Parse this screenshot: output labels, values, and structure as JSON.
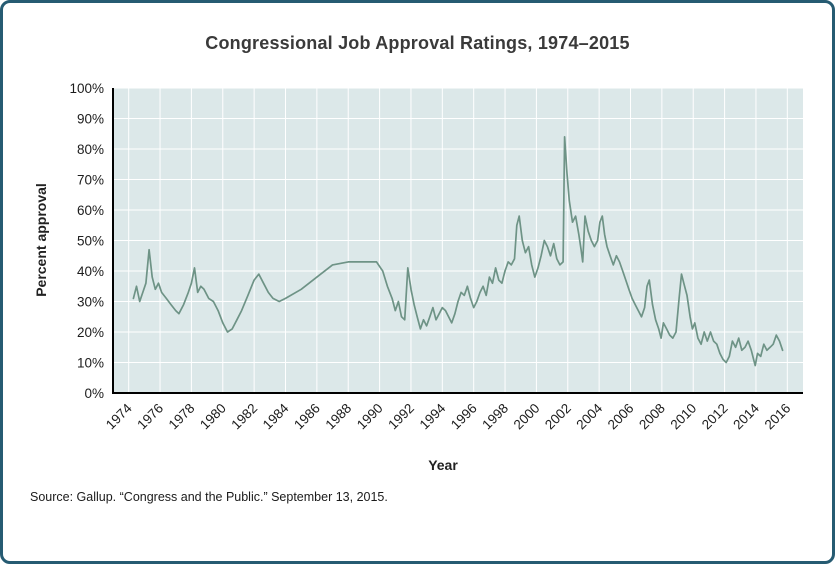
{
  "figure": {
    "title": "Congressional Job Approval Ratings, 1974–2015",
    "source": "Source: Gallup. “Congress and the Public.” September 13, 2015."
  },
  "chart_data": {
    "type": "line",
    "title": "Congressional Job Approval Ratings, 1974–2015",
    "xlabel": "Year",
    "ylabel": "Percent approval",
    "x_domain": [
      1973,
      2017
    ],
    "ylim": [
      0,
      100
    ],
    "xticks": [
      1974,
      1976,
      1978,
      1980,
      1982,
      1984,
      1986,
      1988,
      1990,
      1992,
      1994,
      1996,
      1998,
      2000,
      2002,
      2004,
      2006,
      2008,
      2010,
      2012,
      2014,
      2016
    ],
    "yticks": [
      0,
      10,
      20,
      30,
      40,
      50,
      60,
      70,
      80,
      90,
      100
    ],
    "ytick_suffix": "%",
    "grid": true,
    "grid_color": "#ffffff",
    "plot_bg": "#dce8e9",
    "line_color": "#6e9386",
    "axis_color": "#000000",
    "legend_position": "none",
    "series": [
      {
        "name": "Congressional job approval",
        "points": [
          [
            1974.3,
            31
          ],
          [
            1974.5,
            35
          ],
          [
            1974.7,
            30
          ],
          [
            1974.9,
            33
          ],
          [
            1975.1,
            36
          ],
          [
            1975.3,
            47
          ],
          [
            1975.5,
            38
          ],
          [
            1975.7,
            34
          ],
          [
            1975.9,
            36
          ],
          [
            1976.1,
            33
          ],
          [
            1976.4,
            31
          ],
          [
            1976.7,
            29
          ],
          [
            1977.0,
            27
          ],
          [
            1977.2,
            26
          ],
          [
            1977.5,
            29
          ],
          [
            1977.8,
            33
          ],
          [
            1978.0,
            36
          ],
          [
            1978.2,
            41
          ],
          [
            1978.4,
            33
          ],
          [
            1978.6,
            35
          ],
          [
            1978.8,
            34
          ],
          [
            1979.1,
            31
          ],
          [
            1979.4,
            30
          ],
          [
            1979.7,
            27
          ],
          [
            1980.0,
            23
          ],
          [
            1980.3,
            20
          ],
          [
            1980.6,
            21
          ],
          [
            1980.9,
            24
          ],
          [
            1981.2,
            27
          ],
          [
            1981.6,
            32
          ],
          [
            1982.0,
            37
          ],
          [
            1982.3,
            39
          ],
          [
            1982.6,
            36
          ],
          [
            1982.9,
            33
          ],
          [
            1983.2,
            31
          ],
          [
            1983.6,
            30
          ],
          [
            1984.0,
            31
          ],
          [
            1985.0,
            34
          ],
          [
            1986.0,
            38
          ],
          [
            1987.0,
            42
          ],
          [
            1988.0,
            43
          ],
          [
            1989.0,
            43
          ],
          [
            1989.8,
            43
          ],
          [
            1990.2,
            40
          ],
          [
            1990.5,
            35
          ],
          [
            1990.8,
            31
          ],
          [
            1991.0,
            27
          ],
          [
            1991.2,
            30
          ],
          [
            1991.4,
            25
          ],
          [
            1991.6,
            24
          ],
          [
            1991.8,
            41
          ],
          [
            1992.0,
            34
          ],
          [
            1992.2,
            29
          ],
          [
            1992.4,
            25
          ],
          [
            1992.6,
            21
          ],
          [
            1992.8,
            24
          ],
          [
            1993.0,
            22
          ],
          [
            1993.2,
            25
          ],
          [
            1993.4,
            28
          ],
          [
            1993.6,
            24
          ],
          [
            1993.8,
            26
          ],
          [
            1994.0,
            28
          ],
          [
            1994.2,
            27
          ],
          [
            1994.4,
            25
          ],
          [
            1994.6,
            23
          ],
          [
            1994.8,
            26
          ],
          [
            1995.0,
            30
          ],
          [
            1995.2,
            33
          ],
          [
            1995.4,
            32
          ],
          [
            1995.6,
            35
          ],
          [
            1995.8,
            31
          ],
          [
            1996.0,
            28
          ],
          [
            1996.2,
            30
          ],
          [
            1996.4,
            33
          ],
          [
            1996.6,
            35
          ],
          [
            1996.8,
            32
          ],
          [
            1997.0,
            38
          ],
          [
            1997.2,
            36
          ],
          [
            1997.4,
            41
          ],
          [
            1997.6,
            37
          ],
          [
            1997.8,
            36
          ],
          [
            1998.0,
            40
          ],
          [
            1998.2,
            43
          ],
          [
            1998.4,
            42
          ],
          [
            1998.6,
            44
          ],
          [
            1998.75,
            55
          ],
          [
            1998.9,
            58
          ],
          [
            1999.1,
            50
          ],
          [
            1999.3,
            46
          ],
          [
            1999.5,
            48
          ],
          [
            1999.7,
            42
          ],
          [
            1999.9,
            38
          ],
          [
            2000.1,
            41
          ],
          [
            2000.3,
            45
          ],
          [
            2000.5,
            50
          ],
          [
            2000.7,
            48
          ],
          [
            2000.9,
            45
          ],
          [
            2001.1,
            49
          ],
          [
            2001.3,
            44
          ],
          [
            2001.5,
            42
          ],
          [
            2001.7,
            43
          ],
          [
            2001.8,
            84
          ],
          [
            2001.95,
            72
          ],
          [
            2002.1,
            63
          ],
          [
            2002.3,
            56
          ],
          [
            2002.5,
            58
          ],
          [
            2002.7,
            52
          ],
          [
            2002.85,
            47
          ],
          [
            2002.95,
            43
          ],
          [
            2003.1,
            58
          ],
          [
            2003.3,
            53
          ],
          [
            2003.5,
            50
          ],
          [
            2003.7,
            48
          ],
          [
            2003.9,
            50
          ],
          [
            2004.05,
            56
          ],
          [
            2004.2,
            58
          ],
          [
            2004.35,
            52
          ],
          [
            2004.5,
            48
          ],
          [
            2004.7,
            45
          ],
          [
            2004.9,
            42
          ],
          [
            2005.1,
            45
          ],
          [
            2005.3,
            43
          ],
          [
            2005.5,
            40
          ],
          [
            2005.7,
            37
          ],
          [
            2005.9,
            34
          ],
          [
            2006.1,
            31
          ],
          [
            2006.3,
            29
          ],
          [
            2006.5,
            27
          ],
          [
            2006.7,
            25
          ],
          [
            2006.9,
            28
          ],
          [
            2007.05,
            35
          ],
          [
            2007.2,
            37
          ],
          [
            2007.4,
            29
          ],
          [
            2007.6,
            24
          ],
          [
            2007.8,
            21
          ],
          [
            2007.95,
            18
          ],
          [
            2008.1,
            23
          ],
          [
            2008.3,
            21
          ],
          [
            2008.5,
            19
          ],
          [
            2008.7,
            18
          ],
          [
            2008.9,
            20
          ],
          [
            2009.1,
            31
          ],
          [
            2009.25,
            39
          ],
          [
            2009.4,
            36
          ],
          [
            2009.6,
            32
          ],
          [
            2009.8,
            25
          ],
          [
            2009.95,
            21
          ],
          [
            2010.1,
            23
          ],
          [
            2010.3,
            18
          ],
          [
            2010.5,
            16
          ],
          [
            2010.7,
            20
          ],
          [
            2010.9,
            17
          ],
          [
            2011.1,
            20
          ],
          [
            2011.3,
            17
          ],
          [
            2011.5,
            16
          ],
          [
            2011.7,
            13
          ],
          [
            2011.9,
            11
          ],
          [
            2012.1,
            10
          ],
          [
            2012.3,
            12
          ],
          [
            2012.5,
            17
          ],
          [
            2012.7,
            15
          ],
          [
            2012.9,
            18
          ],
          [
            2013.1,
            14
          ],
          [
            2013.3,
            15
          ],
          [
            2013.5,
            17
          ],
          [
            2013.7,
            14
          ],
          [
            2013.85,
            11
          ],
          [
            2013.95,
            9
          ],
          [
            2014.1,
            13
          ],
          [
            2014.3,
            12
          ],
          [
            2014.5,
            16
          ],
          [
            2014.7,
            14
          ],
          [
            2014.9,
            15
          ],
          [
            2015.1,
            16
          ],
          [
            2015.3,
            19
          ],
          [
            2015.5,
            17
          ],
          [
            2015.7,
            14
          ]
        ]
      }
    ]
  }
}
